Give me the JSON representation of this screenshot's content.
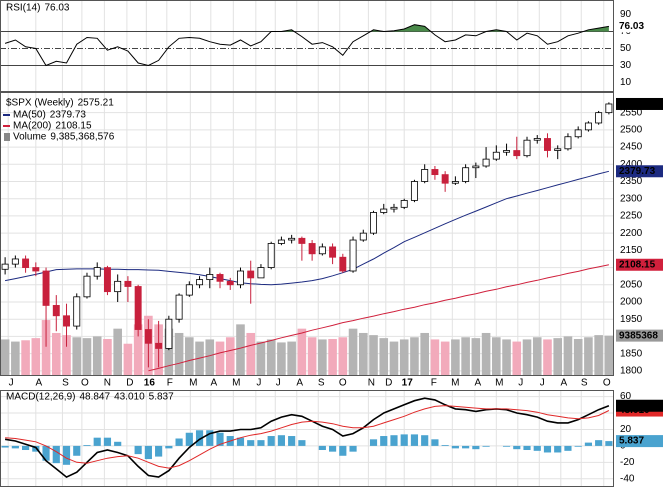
{
  "chart_data": [
    {
      "type": "rsi",
      "name": "RSI(14)",
      "color": "#000000",
      "fill_color": "#4a8a4a",
      "fill_above": 70,
      "values": [
        56,
        60,
        52,
        50,
        30,
        35,
        33,
        55,
        63,
        62,
        48,
        52,
        47,
        33,
        30,
        36,
        52,
        62,
        63,
        62,
        58,
        55,
        54,
        60,
        53,
        58,
        70,
        70,
        72,
        64,
        55,
        57,
        52,
        42,
        58,
        65,
        72,
        70,
        71,
        73,
        78,
        76,
        66,
        58,
        60,
        66,
        65,
        70,
        72,
        70,
        60,
        68,
        65,
        55,
        58,
        65,
        68,
        72,
        74,
        76.03
      ],
      "ylim": [
        0,
        100
      ],
      "yticks": [
        10,
        30,
        50,
        70,
        90
      ],
      "reference_lines": [
        {
          "value": 70,
          "style": "solid"
        },
        {
          "value": 50,
          "style": "dashdot"
        },
        {
          "value": 30,
          "style": "solid"
        }
      ]
    },
    {
      "type": "candlestick",
      "title": "$SPX (Weekly)",
      "up_color": "#ffffff",
      "down_color": "#c8203c",
      "grid": true,
      "open": [
        2095,
        2110,
        2125,
        2100,
        2090,
        1990,
        1960,
        1930,
        2015,
        2075,
        2100,
        2030,
        2060,
        2045,
        1920,
        1880,
        1865,
        1950,
        2020,
        2050,
        2065,
        2080,
        2060,
        2050,
        2090,
        2070,
        2100,
        2170,
        2180,
        2185,
        2170,
        2140,
        2160,
        2130,
        2090,
        2180,
        2200,
        2260,
        2270,
        2275,
        2295,
        2350,
        2385,
        2370,
        2345,
        2350,
        2390,
        2395,
        2415,
        2435,
        2440,
        2425,
        2470,
        2475,
        2440,
        2445,
        2480,
        2500,
        2520,
        2550
      ],
      "high": [
        2130,
        2135,
        2135,
        2115,
        2100,
        2020,
        1995,
        2025,
        2085,
        2115,
        2105,
        2080,
        2075,
        2050,
        1950,
        1945,
        1960,
        2025,
        2060,
        2075,
        2100,
        2085,
        2070,
        2100,
        2120,
        2110,
        2175,
        2190,
        2195,
        2190,
        2180,
        2170,
        2170,
        2140,
        2190,
        2210,
        2265,
        2285,
        2285,
        2300,
        2355,
        2400,
        2395,
        2380,
        2365,
        2400,
        2405,
        2450,
        2455,
        2460,
        2480,
        2480,
        2485,
        2490,
        2455,
        2490,
        2510,
        2525,
        2555,
        2580
      ],
      "low": [
        2080,
        2100,
        2085,
        2075,
        1870,
        1915,
        1870,
        1920,
        2010,
        2065,
        2020,
        2000,
        2000,
        1900,
        1810,
        1810,
        1860,
        1940,
        2015,
        2040,
        2040,
        2040,
        2035,
        2040,
        1995,
        2070,
        2095,
        2165,
        2170,
        2120,
        2120,
        2135,
        2110,
        2085,
        2085,
        2175,
        2195,
        2255,
        2260,
        2270,
        2290,
        2345,
        2355,
        2320,
        2340,
        2345,
        2360,
        2390,
        2410,
        2425,
        2415,
        2420,
        2460,
        2420,
        2415,
        2440,
        2475,
        2495,
        2515,
        2545
      ],
      "close": [
        2110,
        2125,
        2100,
        2090,
        1990,
        1960,
        1930,
        2015,
        2075,
        2100,
        2030,
        2060,
        2045,
        1920,
        1880,
        1865,
        1950,
        2020,
        2050,
        2065,
        2080,
        2060,
        2050,
        2090,
        2070,
        2100,
        2170,
        2180,
        2185,
        2170,
        2140,
        2160,
        2130,
        2090,
        2180,
        2200,
        2260,
        2270,
        2275,
        2295,
        2350,
        2385,
        2370,
        2345,
        2350,
        2390,
        2395,
        2415,
        2435,
        2440,
        2425,
        2470,
        2475,
        2440,
        2445,
        2480,
        2500,
        2520,
        2550,
        2575.21
      ],
      "series": [
        {
          "name": "MA(50)",
          "color": "#1c2a80",
          "values": [
            2062,
            2068,
            2074,
            2080,
            2087,
            2094,
            2095,
            2096,
            2096,
            2096,
            2095,
            2095,
            2094,
            2094,
            2093,
            2092,
            2089,
            2086,
            2083,
            2079,
            2074,
            2068,
            2062,
            2056,
            2053,
            2051,
            2050,
            2052,
            2055,
            2058,
            2062,
            2068,
            2076,
            2085,
            2095,
            2110,
            2125,
            2142,
            2158,
            2175,
            2188,
            2201,
            2214,
            2227,
            2240,
            2252,
            2264,
            2276,
            2288,
            2300,
            2308,
            2316,
            2324,
            2332,
            2340,
            2348,
            2356,
            2364,
            2372,
            2379.73
          ]
        },
        {
          "name": "MA(200)",
          "color": "#d0203c",
          "values": [
            null,
            null,
            null,
            null,
            null,
            null,
            null,
            null,
            null,
            null,
            null,
            null,
            null,
            null,
            1800,
            1807,
            1815,
            1822,
            1830,
            1837,
            1844,
            1852,
            1859,
            1866,
            1874,
            1881,
            1888,
            1896,
            1903,
            1910,
            1918,
            1925,
            1932,
            1940,
            1946,
            1953,
            1959,
            1966,
            1972,
            1979,
            1985,
            1992,
            1998,
            2005,
            2011,
            2018,
            2024,
            2031,
            2037,
            2044,
            2050,
            2057,
            2063,
            2070,
            2076,
            2083,
            2089,
            2096,
            2102,
            2108.15
          ]
        }
      ],
      "volume": {
        "name": "Volume",
        "value_label": "9,385,368,576",
        "axis_label": "9385368",
        "up_color": "#b4b4b4",
        "down_color": "#f2aabb",
        "ylim": [
          0,
          66000000000
        ],
        "values": [
          8500000000.0,
          8000000000.0,
          8300000000.0,
          8800000000.0,
          13000000000.0,
          10000000000.0,
          9500000000.0,
          9000000000.0,
          8800000000.0,
          9200000000.0,
          8600000000.0,
          11000000000.0,
          7500000000.0,
          12000000000.0,
          14000000000.0,
          12000000000.0,
          11000000000.0,
          10000000000.0,
          9000000000.0,
          8000000000.0,
          8500000000.0,
          8000000000.0,
          9000000000.0,
          12000000000.0,
          10000000000.0,
          8000000000.0,
          8500000000.0,
          7800000000.0,
          8000000000.0,
          11000000000.0,
          9000000000.0,
          8500000000.0,
          8600000000.0,
          9000000000.0,
          11000000000.0,
          10000000000.0,
          9500000000.0,
          8800000000.0,
          8000000000.0,
          8500000000.0,
          9000000000.0,
          10000000000.0,
          8500000000.0,
          8000000000.0,
          8500000000.0,
          9000000000.0,
          8800000000.0,
          10000000000.0,
          9000000000.0,
          8500000000.0,
          8000000000.0,
          8500000000.0,
          9000000000.0,
          8500000000.0,
          8800000000.0,
          9200000000.0,
          8600000000.0,
          9000000000.0,
          9500000000.0,
          9385368576
        ]
      },
      "ylim": [
        1785,
        2610
      ],
      "yticks": [
        1800,
        1850,
        1900,
        1950,
        2000,
        2050,
        2100,
        2150,
        2200,
        2250,
        2300,
        2350,
        2400,
        2450,
        2500,
        2550
      ],
      "xlim": [
        -0.5,
        59.5
      ],
      "xticks": [
        {
          "value": 0.3,
          "label": "J"
        },
        {
          "value": 3.0,
          "label": "A"
        },
        {
          "value": 5.6,
          "label": "S"
        },
        {
          "value": 7.5,
          "label": "O"
        },
        {
          "value": 9.7,
          "label": "N"
        },
        {
          "value": 11.9,
          "label": "D"
        },
        {
          "value": 13.8,
          "label": "16"
        },
        {
          "value": 15.8,
          "label": "F"
        },
        {
          "value": 18.1,
          "label": "M"
        },
        {
          "value": 20.1,
          "label": "A"
        },
        {
          "value": 22.3,
          "label": "M"
        },
        {
          "value": 24.5,
          "label": "J"
        },
        {
          "value": 26.4,
          "label": "J"
        },
        {
          "value": 28.5,
          "label": "A"
        },
        {
          "value": 30.6,
          "label": "S"
        },
        {
          "value": 32.7,
          "label": "O"
        },
        {
          "value": 35.5,
          "label": "N"
        },
        {
          "value": 37.2,
          "label": "D"
        },
        {
          "value": 39.0,
          "label": "17"
        },
        {
          "value": 41.6,
          "label": "F"
        },
        {
          "value": 43.7,
          "label": "M"
        },
        {
          "value": 45.9,
          "label": "A"
        },
        {
          "value": 48.0,
          "label": "M"
        },
        {
          "value": 50.1,
          "label": "J"
        },
        {
          "value": 52.2,
          "label": "J"
        },
        {
          "value": 54.3,
          "label": "A"
        },
        {
          "value": 56.3,
          "label": "S"
        },
        {
          "value": 58.5,
          "label": "O"
        }
      ]
    },
    {
      "type": "macd",
      "title": "MACD(12,26,9)",
      "series": [
        {
          "color": "#000000",
          "values": [
            8,
            6,
            2,
            -2,
            -18,
            -28,
            -38,
            -32,
            -20,
            -8,
            -5,
            -8,
            -12,
            -25,
            -36,
            -38,
            -30,
            -15,
            -2,
            8,
            15,
            18,
            18,
            20,
            20,
            22,
            30,
            35,
            38,
            36,
            30,
            24,
            20,
            12,
            15,
            22,
            32,
            40,
            45,
            50,
            55,
            58,
            56,
            50,
            45,
            44,
            42,
            44,
            45,
            44,
            40,
            38,
            35,
            30,
            28,
            28,
            32,
            38,
            44,
            48.847
          ]
        },
        {
          "color": "#e02828",
          "last_value_label": "43.010",
          "values": [
            10,
            9,
            7,
            5,
            0,
            -7,
            -15,
            -20,
            -21,
            -18,
            -15,
            -13,
            -12,
            -15,
            -20,
            -25,
            -27,
            -24,
            -18,
            -11,
            -4,
            2,
            6,
            10,
            13,
            15,
            18,
            22,
            26,
            29,
            30,
            29,
            27,
            24,
            22,
            22,
            24,
            28,
            32,
            36,
            41,
            45,
            48,
            49,
            48,
            47,
            46,
            45,
            45,
            45,
            44,
            43,
            41,
            38,
            36,
            34,
            33,
            34,
            37,
            43.01
          ]
        }
      ],
      "histogram": {
        "color": "#4aa3cf",
        "values": [
          -2,
          -3,
          -5,
          -7,
          -18,
          -21,
          -23,
          -12,
          1,
          10,
          10,
          5,
          0,
          -10,
          -16,
          -13,
          -3,
          9,
          16,
          19,
          19,
          16,
          12,
          10,
          7,
          7,
          12,
          13,
          12,
          7,
          0,
          -5,
          -7,
          -12,
          -7,
          0,
          8,
          12,
          13,
          14,
          14,
          13,
          8,
          1,
          -3,
          -3,
          -4,
          -1,
          0,
          -1,
          -4,
          -5,
          -6,
          -8,
          -8,
          -6,
          -1,
          4,
          7,
          5.837
        ]
      },
      "ylim": [
        -50,
        68
      ],
      "yticks": [
        -40,
        -20,
        0,
        20,
        40,
        60
      ]
    }
  ]
}
